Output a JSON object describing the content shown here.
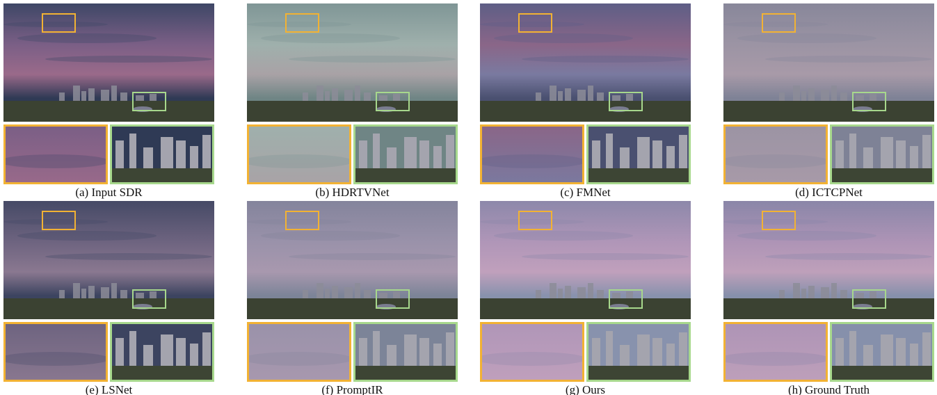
{
  "figure": {
    "panels": [
      {
        "caption": "(a) Input SDR"
      },
      {
        "caption": "(b) HDRTVNet"
      },
      {
        "caption": "(c) FMNet"
      },
      {
        "caption": "(d) ICTCPNet"
      },
      {
        "caption": "(e) LSNet"
      },
      {
        "caption": "(f) PromptIR"
      },
      {
        "caption": "(g) Ours"
      },
      {
        "caption": "(h) Ground Truth"
      }
    ]
  }
}
